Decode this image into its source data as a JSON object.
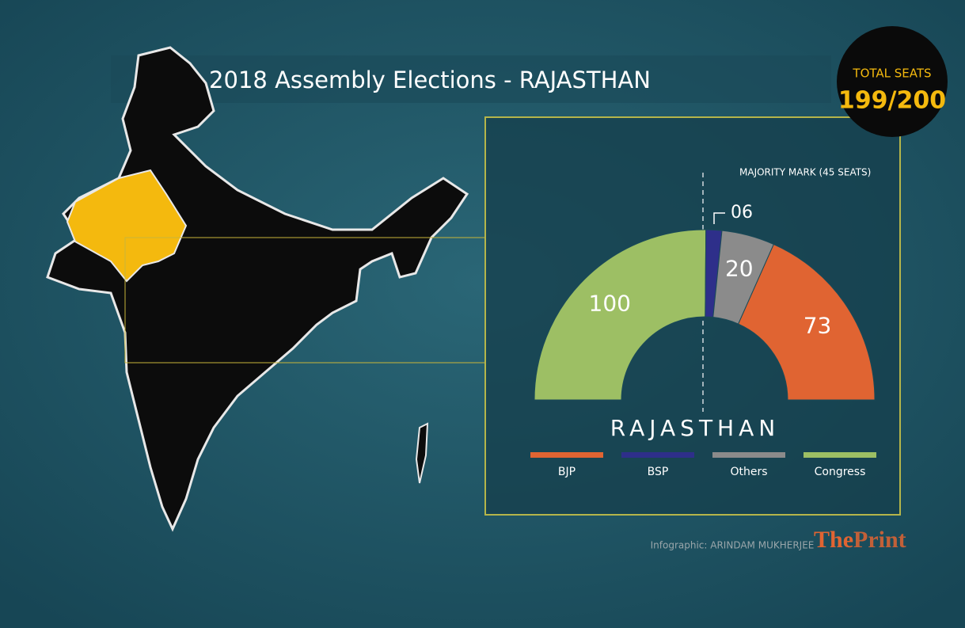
{
  "chart_data": {
    "type": "pie",
    "title": "2018 Assembly Elections - RAJASTHAN",
    "subtitle": "RAJASTHAN",
    "total_label": "TOTAL SEATS",
    "total_value": "199/200",
    "annotation": "MAJORITY MARK (45 SEATS)",
    "credit": "Infographic: ARINDAM MUKHERJEE",
    "logo": [
      "The",
      "Print"
    ],
    "categories": [
      "BJP",
      "BSP",
      "Others",
      "Congress"
    ],
    "values": [
      73,
      6,
      20,
      100
    ],
    "value_labels": [
      "73",
      "06",
      "20",
      "100"
    ],
    "colors": [
      "#e06432",
      "#2e2f8a",
      "#8b8b8b",
      "#9dbf64"
    ]
  }
}
